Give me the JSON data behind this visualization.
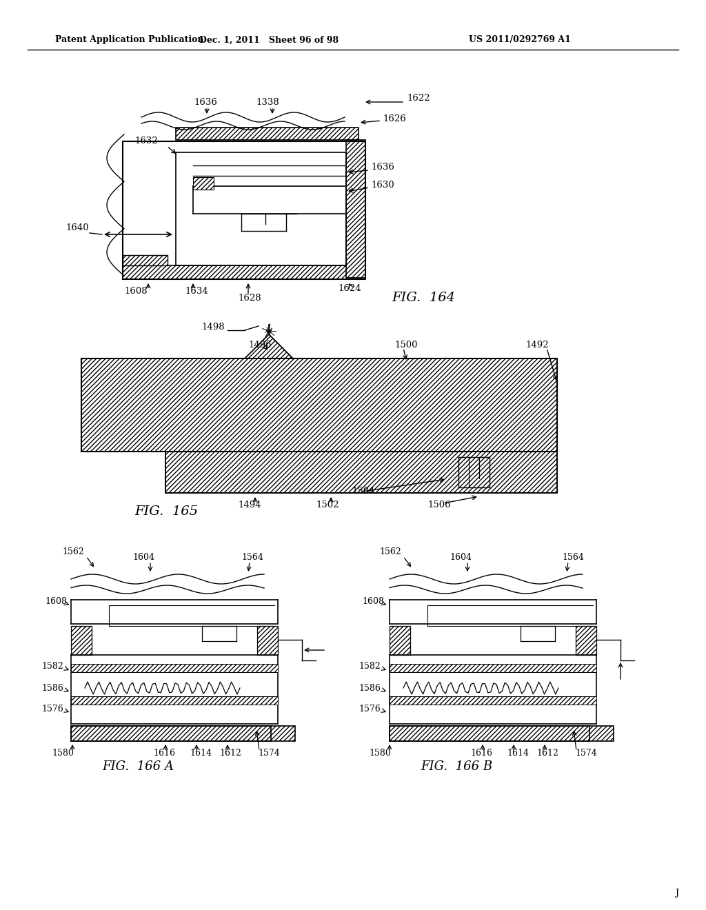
{
  "bg_color": "#ffffff",
  "header_left": "Patent Application Publication",
  "header_mid": "Dec. 1, 2011   Sheet 96 of 98",
  "header_right": "US 2011/0292769 A1",
  "fig164_label": "FIG.  164",
  "fig165_label": "FIG.  165",
  "fig166a_label": "FIG.  166 A",
  "fig166b_label": "FIG.  166 B"
}
